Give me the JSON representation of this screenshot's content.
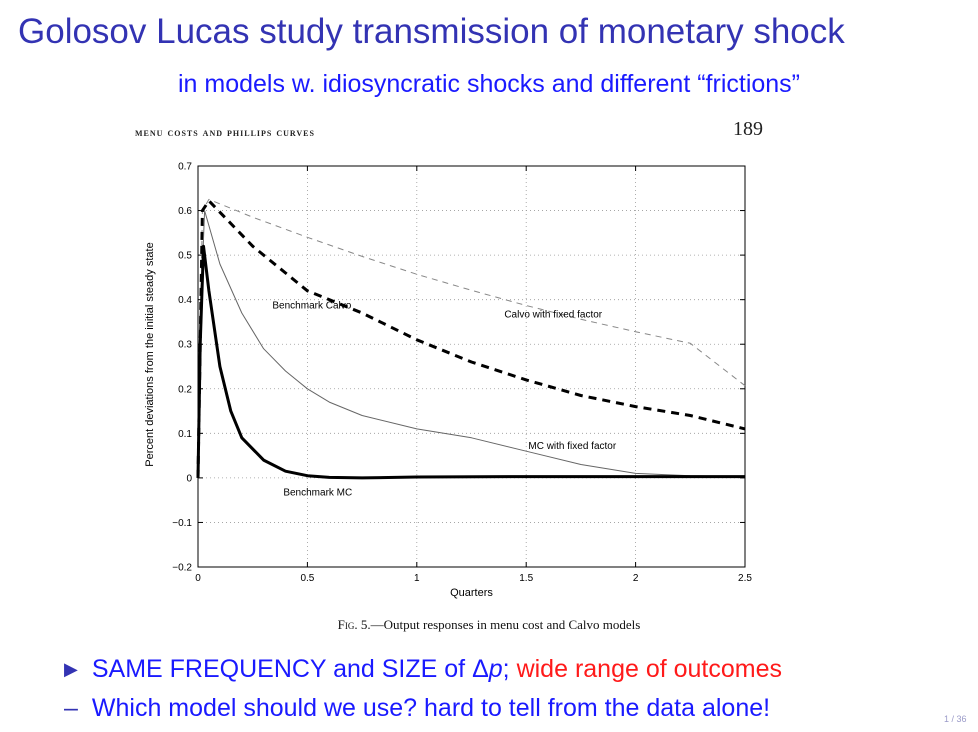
{
  "slide": {
    "title": "Golosov Lucas study transmission of monetary shock",
    "subtitle": "in models w. idiosyncratic shocks and different “frictions”",
    "paper_header": "Menu Costs and Phillips Curves",
    "paper_page": "189",
    "caption_fig": "Fig. 5.",
    "caption_text": "—Output responses in menu cost and Calvo models",
    "bullet_1_a": "SAME FREQUENCY and SIZE of ",
    "bullet_1_delta": "Δ",
    "bullet_1_p": "p",
    "bullet_1_b": "; ",
    "bullet_1_red": "wide range of outcomes",
    "bullet_2": "Which model should we use? hard to tell from the data alone!",
    "page_counter": "1 / 36"
  },
  "chart_data": {
    "type": "line",
    "title": "",
    "xlabel": "Quarters",
    "ylabel": "Percent deviations from the initial steady state",
    "xlim": [
      0,
      2.5
    ],
    "ylim": [
      -0.2,
      0.7
    ],
    "xticks": [
      "0",
      "0.5",
      "1",
      "1.5",
      "2",
      "2.5"
    ],
    "xtick_values": [
      0,
      0.5,
      1,
      1.5,
      2,
      2.5
    ],
    "yticks": [
      "−0.2",
      "−0.1",
      "0",
      "0.1",
      "0.2",
      "0.3",
      "0.4",
      "0.5",
      "0.6",
      "0.7"
    ],
    "ytick_values": [
      -0.2,
      -0.1,
      0,
      0.1,
      0.2,
      0.3,
      0.4,
      0.5,
      0.6,
      0.7
    ],
    "grid": true,
    "series": [
      {
        "name": "Calvo with fixed factor",
        "style": "thin-dashed",
        "color": "#888888",
        "x": [
          0,
          0.02,
          0.05,
          0.25,
          0.5,
          0.75,
          1,
          1.25,
          1.5,
          1.75,
          2,
          2.25,
          2.5
        ],
        "y": [
          0,
          0.6,
          0.625,
          0.585,
          0.54,
          0.497,
          0.457,
          0.421,
          0.387,
          0.356,
          0.328,
          0.302,
          0.207
        ]
      },
      {
        "name": "Benchmark Calvo",
        "style": "thick-dashed",
        "color": "#000000",
        "x": [
          0,
          0.02,
          0.05,
          0.25,
          0.5,
          0.75,
          1,
          1.25,
          1.5,
          1.75,
          2,
          2.25,
          2.5
        ],
        "y": [
          0,
          0.6,
          0.622,
          0.52,
          0.42,
          0.37,
          0.31,
          0.26,
          0.22,
          0.185,
          0.16,
          0.14,
          0.11
        ]
      },
      {
        "name": "MC with fixed factor",
        "style": "thin-solid",
        "color": "#666666",
        "x": [
          0,
          0.01,
          0.03,
          0.1,
          0.2,
          0.3,
          0.4,
          0.5,
          0.6,
          0.75,
          1,
          1.25,
          1.5,
          1.75,
          2,
          2.25,
          2.5
        ],
        "y": [
          0,
          0.35,
          0.6,
          0.48,
          0.37,
          0.29,
          0.24,
          0.2,
          0.17,
          0.14,
          0.11,
          0.09,
          0.06,
          0.03,
          0.01,
          0.005,
          0.003
        ]
      },
      {
        "name": "Benchmark MC",
        "style": "thick-solid",
        "color": "#000000",
        "x": [
          0,
          0.01,
          0.025,
          0.05,
          0.1,
          0.15,
          0.2,
          0.3,
          0.4,
          0.5,
          0.6,
          0.75,
          1,
          1.5,
          2,
          2.5
        ],
        "y": [
          0,
          0.3,
          0.52,
          0.42,
          0.25,
          0.15,
          0.09,
          0.04,
          0.015,
          0.005,
          0.001,
          0,
          0.002,
          0.003,
          0.003,
          0.003
        ]
      }
    ],
    "annotations": [
      {
        "text": "Benchmark Calvo",
        "x": 0.34,
        "y": 0.38
      },
      {
        "text": "Calvo with fixed factor",
        "x": 1.4,
        "y": 0.36
      },
      {
        "text": "MC with fixed factor",
        "x": 1.51,
        "y": 0.065
      },
      {
        "text": "Benchmark MC",
        "x": 0.39,
        "y": -0.04
      }
    ]
  }
}
